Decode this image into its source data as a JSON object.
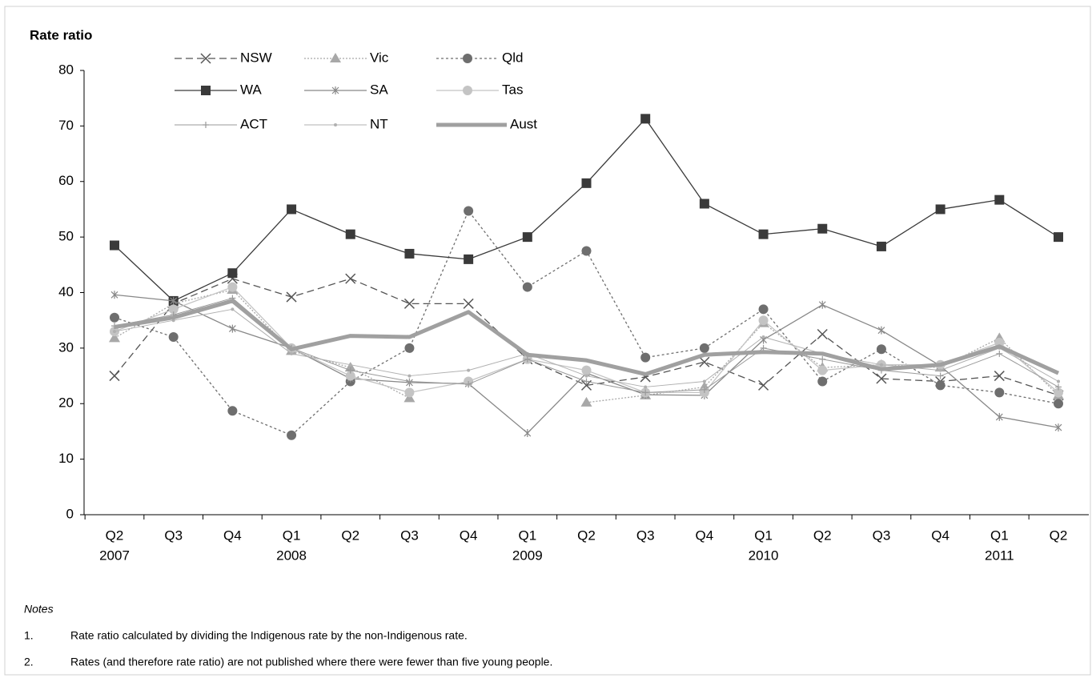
{
  "chart_data": {
    "type": "line",
    "y_label": "Rate ratio",
    "categories": [
      "Q2",
      "Q3",
      "Q4",
      "Q1",
      "Q2",
      "Q3",
      "Q4",
      "Q1",
      "Q2",
      "Q3",
      "Q4",
      "Q1",
      "Q2",
      "Q3",
      "Q4",
      "Q1",
      "Q2"
    ],
    "years": [
      "2007",
      null,
      null,
      "2008",
      null,
      null,
      null,
      "2009",
      null,
      null,
      null,
      "2010",
      null,
      null,
      null,
      "2011",
      null
    ],
    "ylim": [
      0,
      80
    ],
    "yticks": [
      0,
      10,
      20,
      30,
      40,
      50,
      60,
      70,
      80
    ],
    "series": [
      {
        "name": "NSW",
        "color": "#555555",
        "dash": "9 5",
        "marker": "x",
        "width": 1.3,
        "values": [
          25,
          38,
          42.5,
          39.2,
          42.5,
          38,
          38,
          28,
          23.3,
          24.8,
          27.5,
          23.3,
          32.5,
          24.5,
          24,
          25,
          21.5
        ]
      },
      {
        "name": "Vic",
        "color": "#a8a8a8",
        "dash": "2 2",
        "marker": "triangle",
        "width": 1.3,
        "values": [
          31.8,
          38,
          40.5,
          29.5,
          26.5,
          21,
          null,
          null,
          20.2,
          21.5,
          23,
          34.5,
          26.5,
          27,
          26.5,
          31.8,
          21.5
        ]
      },
      {
        "name": "Qld",
        "color": "#6e6e6e",
        "dash": "3 3",
        "marker": "circle",
        "width": 1.3,
        "values": [
          35.5,
          32,
          18.7,
          14.3,
          24,
          30,
          54.7,
          41,
          47.5,
          28.3,
          30,
          37,
          24,
          29.8,
          23.3,
          22,
          20
        ]
      },
      {
        "name": "WA",
        "color": "#3a3a3a",
        "dash": "",
        "marker": "square",
        "width": 1.3,
        "values": [
          48.5,
          38.5,
          43.5,
          55,
          50.5,
          47,
          46,
          50,
          59.7,
          71.3,
          56,
          50.5,
          51.5,
          48.3,
          55,
          56.7,
          50
        ]
      },
      {
        "name": "SA",
        "color": "#888888",
        "dash": "",
        "marker": "star",
        "width": 1.3,
        "values": [
          39.6,
          38.5,
          33.5,
          30,
          24.5,
          23.8,
          23.6,
          14.7,
          25.5,
          21.6,
          21.5,
          31.5,
          37.8,
          33.2,
          26.8,
          17.6,
          15.7
        ]
      },
      {
        "name": "Tas",
        "color": "#c4c4c4",
        "dash": "",
        "marker": "circle",
        "width": 1.3,
        "values": [
          33,
          37,
          41,
          30,
          25,
          22,
          24,
          28,
          26,
          22,
          22,
          35,
          26,
          27,
          27,
          31,
          22
        ]
      },
      {
        "name": "ACT",
        "color": "#9a9a9a",
        "dash": "",
        "marker": "plus",
        "width": 1,
        "values": [
          34,
          36,
          39,
          30,
          26,
          24,
          23.5,
          28,
          24,
          22,
          22.5,
          30,
          28,
          26,
          25,
          29,
          23
        ]
      },
      {
        "name": "NT",
        "color": "#b0b0b0",
        "dash": "",
        "marker": "dot",
        "width": 1,
        "values": [
          33,
          35,
          37,
          29,
          27,
          25,
          26,
          29,
          25,
          23,
          24,
          32,
          29,
          27,
          26,
          30,
          24
        ]
      },
      {
        "name": "Aust",
        "color": "#a0a0a0",
        "dash": "",
        "marker": "none",
        "width": 5,
        "values": [
          33.8,
          35.5,
          38.5,
          29.8,
          32.2,
          32,
          36.5,
          28.8,
          27.8,
          25.3,
          28.8,
          29.3,
          29,
          26.2,
          27,
          30.3,
          25.5
        ]
      }
    ]
  },
  "notes": {
    "heading": "Notes",
    "items": [
      {
        "number": "1.",
        "text": "Rate ratio calculated by dividing the Indigenous rate by the non-Indigenous rate."
      },
      {
        "number": "2.",
        "text": "Rates (and therefore rate ratio) are not published where there were fewer than five young people."
      }
    ]
  }
}
